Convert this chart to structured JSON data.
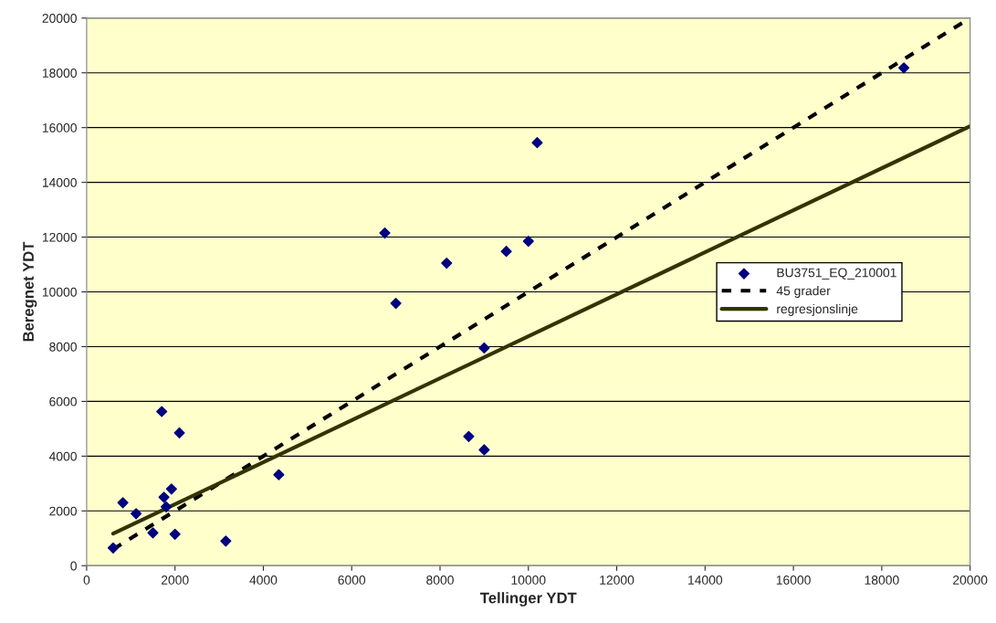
{
  "chart_data": {
    "type": "scatter",
    "xlabel": "Tellinger YDT",
    "ylabel": "Beregnet YDT",
    "xlim": [
      0,
      20000
    ],
    "ylim": [
      0,
      20000
    ],
    "xticks": [
      0,
      2000,
      4000,
      6000,
      8000,
      10000,
      12000,
      14000,
      16000,
      18000,
      20000
    ],
    "yticks": [
      0,
      2000,
      4000,
      6000,
      8000,
      10000,
      12000,
      14000,
      16000,
      18000,
      20000
    ],
    "grid": "y",
    "legend": "center right",
    "series": [
      {
        "name": "BU3751_EQ_210001",
        "marker": "diamond",
        "color": "#000080",
        "x": [
          600,
          820,
          1120,
          1500,
          1700,
          1750,
          1800,
          1920,
          2000,
          2100,
          3150,
          4350,
          6750,
          7000,
          8150,
          8650,
          9000,
          9000,
          9500,
          10000,
          10200,
          18500
        ],
        "values": [
          650,
          2300,
          1900,
          1200,
          5630,
          2500,
          2150,
          2800,
          1150,
          4850,
          900,
          3320,
          12150,
          9580,
          11050,
          4720,
          7950,
          4230,
          11480,
          11850,
          15450,
          18180
        ]
      },
      {
        "name": "45 grader",
        "type": "line",
        "line_style": "dashed",
        "color": "#000000",
        "x": [
          600,
          20000
        ],
        "values": [
          600,
          20000
        ]
      },
      {
        "name": "regresjonslinje",
        "type": "line",
        "line_style": "solid",
        "color": "#333300",
        "x": [
          600,
          20000
        ],
        "values": [
          1170,
          16050
        ]
      }
    ]
  }
}
